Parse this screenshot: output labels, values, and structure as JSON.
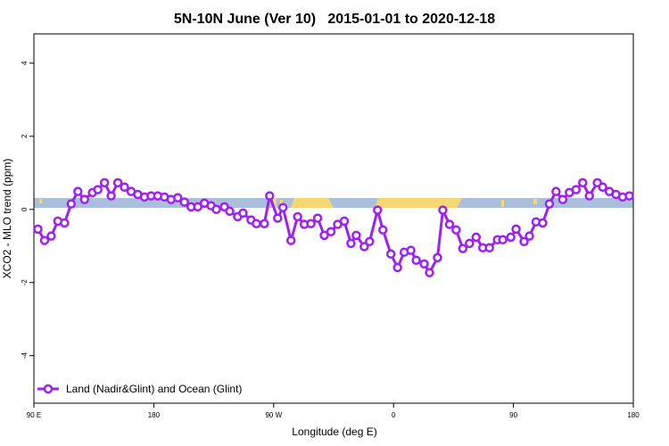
{
  "chart_data": {
    "type": "line",
    "title": "5N-10N June (Ver 10)   2015-01-01 to 2020-12-18",
    "x_label": "Longitude (deg E)",
    "y_label": "XCO2 - MLO trend (ppm)",
    "xlim": [
      90,
      540
    ],
    "ylim": [
      -5.3,
      4.8
    ],
    "xticks": [
      {
        "value": 90,
        "label": "90 E"
      },
      180,
      {
        "value": 270,
        "label": "90 W"
      },
      0,
      90,
      180
    ],
    "yticks": [
      -4,
      -2,
      0,
      2,
      4
    ],
    "legend": "bottom-left",
    "x": [
      93,
      98,
      103,
      108,
      113,
      118,
      123,
      128,
      134,
      138,
      143,
      148,
      153,
      158,
      163,
      168,
      173,
      178,
      183,
      188,
      193,
      198,
      203,
      208,
      213,
      218,
      223,
      227,
      233,
      237,
      243,
      247,
      253,
      257,
      263,
      267,
      273,
      277,
      283,
      288,
      293,
      298,
      303,
      308,
      313,
      318,
      323,
      328,
      332,
      338,
      342,
      348,
      352,
      358,
      363,
      368,
      373,
      377,
      383,
      387,
      393,
      397,
      402,
      407,
      412,
      417,
      422,
      427,
      432,
      438,
      442,
      448,
      452,
      458,
      462,
      467,
      472,
      477,
      482,
      487,
      492,
      497,
      502,
      507,
      513,
      517,
      522,
      527,
      532,
      537
    ],
    "series": [
      {
        "name": "Land (Nadir&Glint) and Ocean (Glint)",
        "color": "#a020f0",
        "values": [
          -0.54,
          -0.85,
          -0.73,
          -0.32,
          -0.37,
          0.15,
          0.49,
          0.27,
          0.46,
          0.54,
          0.73,
          0.37,
          0.73,
          0.61,
          0.49,
          0.41,
          0.34,
          0.37,
          0.37,
          0.34,
          0.27,
          0.32,
          0.2,
          0.07,
          0.07,
          0.17,
          0.1,
          0,
          0.07,
          -0.05,
          -0.2,
          -0.1,
          -0.29,
          -0.39,
          -0.39,
          0.37,
          -0.24,
          0.05,
          -0.85,
          -0.2,
          -0.41,
          -0.39,
          -0.24,
          -0.71,
          -0.61,
          -0.41,
          -0.32,
          -0.93,
          -0.71,
          -1.02,
          -0.88,
          -0.02,
          -0.56,
          -1.22,
          -1.59,
          -1.17,
          -1.12,
          -1.39,
          -1.49,
          -1.73,
          -1.32,
          -0.02,
          -0.41,
          -0.56,
          -1.07,
          -0.93,
          -0.76,
          -1.05,
          -1.05,
          -0.83,
          -0.83,
          -0.76,
          -0.54,
          -0.88,
          -0.73,
          -0.34,
          -0.37,
          0.15,
          0.49,
          0.27,
          0.46,
          0.54,
          0.73,
          0.37,
          0.73,
          0.61,
          0.49,
          0.41,
          0.34,
          0.37
        ]
      }
    ]
  }
}
